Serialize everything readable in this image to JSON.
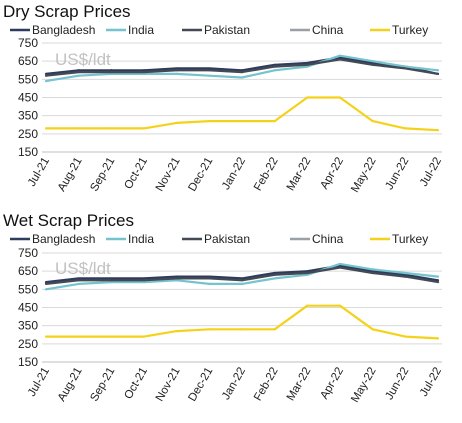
{
  "x_labels": [
    "Jul-21",
    "Aug-21",
    "Sep-21",
    "Oct-21",
    "Nov-21",
    "Dec-21",
    "Jan-22",
    "Feb-22",
    "Mar-22",
    "Apr-22",
    "May-22",
    "Jun-22",
    "Jul-22"
  ],
  "series_colors": {
    "Bangladesh": "#2e3b5e",
    "India": "#74c3cf",
    "Pakistan": "#444a54",
    "China": "#9aa0a6",
    "Turkey": "#f5d21a"
  },
  "chart_data": [
    {
      "type": "line",
      "title": "Dry Scrap Prices",
      "unit_label": "US$/ldt",
      "ylim": [
        150,
        750
      ],
      "yticks": [
        150,
        250,
        350,
        450,
        550,
        650,
        750
      ],
      "grid": true,
      "legend": "top",
      "x": [
        "Jul-21",
        "Aug-21",
        "Sep-21",
        "Oct-21",
        "Nov-21",
        "Dec-21",
        "Jan-22",
        "Feb-22",
        "Mar-22",
        "Apr-22",
        "May-22",
        "Jun-22",
        "Jul-22"
      ],
      "series": [
        {
          "name": "Bangladesh",
          "values": [
            580,
            600,
            600,
            600,
            610,
            610,
            600,
            630,
            640,
            670,
            640,
            620,
            580
          ]
        },
        {
          "name": "India",
          "values": [
            540,
            570,
            580,
            580,
            580,
            570,
            560,
            600,
            620,
            680,
            650,
            620,
            600
          ]
        },
        {
          "name": "Pakistan",
          "values": [
            570,
            590,
            590,
            590,
            600,
            600,
            590,
            620,
            630,
            660,
            630,
            610,
            580
          ]
        },
        {
          "name": "China",
          "values": [
            null,
            null,
            null,
            null,
            null,
            null,
            null,
            null,
            null,
            null,
            null,
            null,
            null
          ]
        },
        {
          "name": "Turkey",
          "values": [
            280,
            280,
            280,
            280,
            310,
            320,
            320,
            320,
            450,
            450,
            320,
            280,
            270
          ]
        }
      ]
    },
    {
      "type": "line",
      "title": "Wet Scrap Prices",
      "unit_label": "US$/ldt",
      "ylim": [
        150,
        750
      ],
      "yticks": [
        150,
        250,
        350,
        450,
        550,
        650,
        750
      ],
      "grid": true,
      "legend": "top",
      "x": [
        "Jul-21",
        "Aug-21",
        "Sep-21",
        "Oct-21",
        "Nov-21",
        "Dec-21",
        "Jan-22",
        "Feb-22",
        "Mar-22",
        "Apr-22",
        "May-22",
        "Jun-22",
        "Jul-22"
      ],
      "series": [
        {
          "name": "Bangladesh",
          "values": [
            590,
            610,
            610,
            610,
            620,
            620,
            610,
            640,
            650,
            680,
            650,
            630,
            600
          ]
        },
        {
          "name": "India",
          "values": [
            550,
            580,
            590,
            590,
            600,
            580,
            580,
            610,
            630,
            690,
            660,
            640,
            620
          ]
        },
        {
          "name": "Pakistan",
          "values": [
            580,
            600,
            600,
            600,
            610,
            610,
            600,
            630,
            640,
            670,
            640,
            620,
            590
          ]
        },
        {
          "name": "China",
          "values": [
            null,
            null,
            null,
            null,
            null,
            null,
            null,
            null,
            null,
            null,
            null,
            null,
            null
          ]
        },
        {
          "name": "Turkey",
          "values": [
            290,
            290,
            290,
            290,
            320,
            330,
            330,
            330,
            460,
            460,
            330,
            290,
            280
          ]
        }
      ]
    }
  ]
}
